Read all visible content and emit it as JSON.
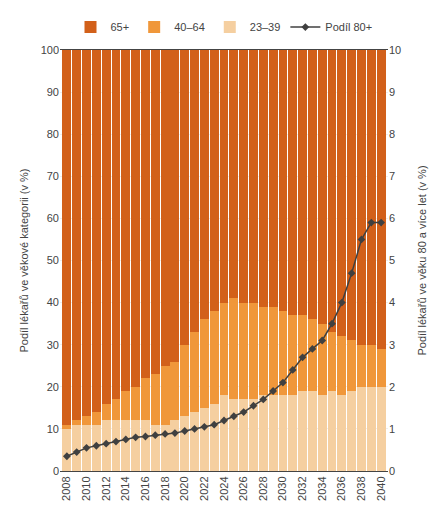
{
  "chart_data": {
    "type": "bar",
    "stacked": true,
    "grid": true,
    "legend": "top",
    "ylabel": "Podíl lékařů ve věkové kategorii (v %)",
    "y2label": "Podíl lékařů ve věku 80 a více let (v %)",
    "x": [
      2008,
      2009,
      2010,
      2011,
      2012,
      2013,
      2014,
      2015,
      2016,
      2017,
      2018,
      2019,
      2020,
      2021,
      2022,
      2023,
      2024,
      2025,
      2026,
      2027,
      2028,
      2029,
      2030,
      2031,
      2032,
      2033,
      2034,
      2035,
      2036,
      2037,
      2038,
      2039,
      2040
    ],
    "xlim": [
      2007.3,
      2040.7
    ],
    "xticks": [
      2008,
      2010,
      2012,
      2014,
      2016,
      2018,
      2020,
      2022,
      2024,
      2026,
      2028,
      2030,
      2032,
      2034,
      2036,
      2038,
      2040
    ],
    "ylim": [
      0,
      100
    ],
    "yticks": [
      0,
      10,
      20,
      30,
      40,
      50,
      60,
      70,
      80,
      90,
      100
    ],
    "y2lim": [
      0,
      10
    ],
    "y2ticks": [
      0,
      1,
      2,
      3,
      4,
      5,
      6,
      7,
      8,
      9,
      10
    ],
    "series": [
      {
        "name": "23–39",
        "type": "bar",
        "color": "#F5CFA0",
        "values": [
          10,
          11,
          11,
          11,
          12,
          12,
          12,
          12,
          12,
          11,
          11,
          12,
          13,
          14,
          15,
          16,
          18,
          17,
          17,
          17,
          18,
          18,
          18,
          18,
          19,
          19,
          18,
          19,
          18,
          19,
          20,
          20,
          20
        ]
      },
      {
        "name": "40–64",
        "type": "bar",
        "color": "#F0973A",
        "values": [
          1,
          1,
          2,
          3,
          4,
          5,
          7,
          8,
          10,
          12,
          14,
          14,
          17,
          19,
          21,
          22,
          22,
          24,
          23,
          23,
          21,
          21,
          20,
          19,
          18,
          17,
          17,
          14,
          14,
          12,
          10,
          10,
          9
        ]
      },
      {
        "name": "65+",
        "type": "bar",
        "color": "#D2601A",
        "values": [
          89,
          88,
          87,
          86,
          84,
          83,
          81,
          80,
          78,
          77,
          75,
          74,
          70,
          67,
          64,
          62,
          60,
          59,
          60,
          60,
          61,
          61,
          62,
          63,
          63,
          64,
          65,
          67,
          68,
          69,
          70,
          70,
          71
        ]
      },
      {
        "name": "Podíl 80+",
        "type": "line",
        "axis": "y2",
        "color": "#404040",
        "marker": "diamond",
        "line_style": "solid",
        "values": [
          0.35,
          0.45,
          0.55,
          0.6,
          0.65,
          0.7,
          0.75,
          0.8,
          0.82,
          0.85,
          0.88,
          0.9,
          0.95,
          1.0,
          1.05,
          1.1,
          1.2,
          1.3,
          1.4,
          1.55,
          1.7,
          1.9,
          2.1,
          2.4,
          2.7,
          2.9,
          3.1,
          3.5,
          4.0,
          4.7,
          5.5,
          5.9,
          5.9
        ]
      }
    ]
  }
}
